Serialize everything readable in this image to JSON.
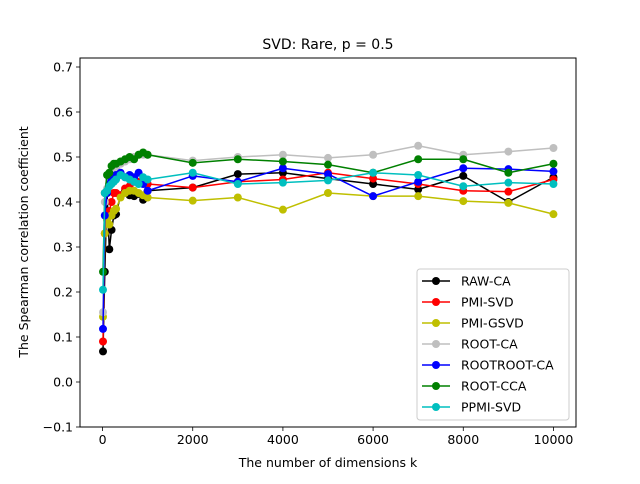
{
  "chart_data": {
    "type": "line",
    "title": "SVD: Rare, p = 0.5",
    "xlabel": "The number of dimensions k",
    "ylabel": "The Spearman correlation coefficient",
    "xlim": [
      -500,
      10500
    ],
    "ylim": [
      -0.1,
      0.72
    ],
    "xticks": [
      0,
      2000,
      4000,
      6000,
      8000,
      10000
    ],
    "xtick_labels": [
      "0",
      "2000",
      "4000",
      "6000",
      "8000",
      "10000"
    ],
    "yticks": [
      -0.1,
      0.0,
      0.1,
      0.2,
      0.3,
      0.4,
      0.5,
      0.6,
      0.7
    ],
    "ytick_labels": [
      "−0.1",
      "0.0",
      "0.1",
      "0.2",
      "0.3",
      "0.4",
      "0.5",
      "0.6",
      "0.7"
    ],
    "grid": false,
    "legend_position": "lower-right",
    "series": [
      {
        "name": "RAW-CA",
        "color": "#000000",
        "x": [
          10,
          50,
          100,
          150,
          200,
          250,
          300,
          400,
          500,
          600,
          700,
          800,
          900,
          1000,
          2000,
          3000,
          4000,
          5000,
          6000,
          7000,
          8000,
          9000,
          10000
        ],
        "values": [
          0.068,
          0.245,
          0.42,
          0.295,
          0.338,
          0.37,
          0.373,
          0.415,
          0.425,
          0.415,
          0.413,
          0.418,
          0.405,
          0.425,
          0.432,
          0.462,
          0.465,
          0.452,
          0.44,
          0.428,
          0.458,
          0.4,
          0.455
        ]
      },
      {
        "name": "PMI-SVD",
        "color": "#ff0000",
        "x": [
          10,
          50,
          100,
          150,
          200,
          250,
          300,
          400,
          500,
          600,
          700,
          800,
          900,
          1000,
          2000,
          3000,
          4000,
          5000,
          6000,
          7000,
          8000,
          9000,
          10000
        ],
        "values": [
          0.09,
          0.33,
          0.365,
          0.38,
          0.4,
          0.42,
          0.42,
          0.415,
          0.43,
          0.435,
          0.445,
          0.445,
          0.445,
          0.44,
          0.432,
          0.445,
          0.45,
          0.465,
          0.452,
          0.44,
          0.425,
          0.423,
          0.45
        ]
      },
      {
        "name": "PMI-GSVD",
        "color": "#bfbf00",
        "x": [
          10,
          50,
          100,
          150,
          200,
          250,
          300,
          400,
          500,
          600,
          700,
          800,
          900,
          1000,
          2000,
          3000,
          4000,
          5000,
          6000,
          7000,
          8000,
          9000,
          10000
        ],
        "values": [
          0.145,
          0.33,
          0.36,
          0.35,
          0.37,
          0.38,
          0.385,
          0.41,
          0.42,
          0.425,
          0.425,
          0.42,
          0.415,
          0.41,
          0.403,
          0.41,
          0.383,
          0.42,
          0.413,
          0.413,
          0.402,
          0.398,
          0.373
        ]
      },
      {
        "name": "ROOT-CA",
        "color": "#bfbfbf",
        "x": [
          10,
          50,
          100,
          150,
          200,
          250,
          300,
          400,
          500,
          600,
          700,
          800,
          900,
          1000,
          2000,
          3000,
          4000,
          5000,
          6000,
          7000,
          8000,
          9000,
          10000
        ],
        "values": [
          0.155,
          0.4,
          0.43,
          0.45,
          0.46,
          0.47,
          0.475,
          0.485,
          0.49,
          0.495,
          0.5,
          0.505,
          0.505,
          0.505,
          0.492,
          0.5,
          0.505,
          0.498,
          0.505,
          0.525,
          0.505,
          0.512,
          0.52
        ]
      },
      {
        "name": "ROOTROOT-CA",
        "color": "#0000ff",
        "x": [
          10,
          50,
          100,
          150,
          200,
          250,
          300,
          400,
          500,
          600,
          700,
          800,
          900,
          1000,
          2000,
          3000,
          4000,
          5000,
          6000,
          7000,
          8000,
          9000,
          10000
        ],
        "values": [
          0.118,
          0.37,
          0.42,
          0.44,
          0.45,
          0.455,
          0.46,
          0.465,
          0.455,
          0.46,
          0.455,
          0.465,
          0.44,
          0.425,
          0.458,
          0.445,
          0.475,
          0.462,
          0.413,
          0.445,
          0.475,
          0.473,
          0.468
        ]
      },
      {
        "name": "ROOT-CCA",
        "color": "#008000",
        "x": [
          10,
          50,
          100,
          150,
          200,
          250,
          300,
          400,
          500,
          600,
          700,
          800,
          900,
          1000,
          2000,
          3000,
          4000,
          5000,
          6000,
          7000,
          8000,
          9000,
          10000
        ],
        "values": [
          0.245,
          0.42,
          0.46,
          0.465,
          0.48,
          0.485,
          0.485,
          0.49,
          0.495,
          0.5,
          0.495,
          0.505,
          0.51,
          0.505,
          0.487,
          0.495,
          0.49,
          0.483,
          0.465,
          0.495,
          0.495,
          0.465,
          0.485
        ]
      },
      {
        "name": "PPMI-SVD",
        "color": "#00bfbf",
        "x": [
          10,
          50,
          100,
          150,
          200,
          250,
          300,
          400,
          500,
          600,
          700,
          800,
          900,
          1000,
          2000,
          3000,
          4000,
          5000,
          6000,
          7000,
          8000,
          9000,
          10000
        ],
        "values": [
          0.205,
          0.42,
          0.425,
          0.435,
          0.44,
          0.445,
          0.45,
          0.46,
          0.455,
          0.45,
          0.445,
          0.44,
          0.455,
          0.45,
          0.465,
          0.44,
          0.443,
          0.448,
          0.465,
          0.46,
          0.435,
          0.443,
          0.44
        ]
      }
    ]
  }
}
